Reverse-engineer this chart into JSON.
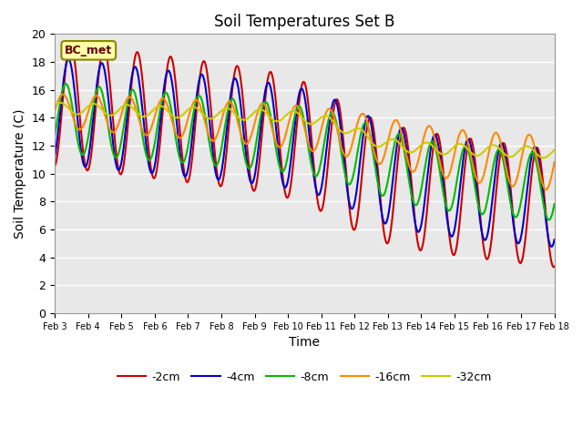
{
  "title": "Soil Temperatures Set B",
  "xlabel": "Time",
  "ylabel": "Soil Temperature (C)",
  "ylim": [
    0,
    20
  ],
  "annotation_text": "BC_met",
  "background_color": "#e8e8e8",
  "series_colors": {
    "-2cm": "#cc0000",
    "-4cm": "#0000cc",
    "-8cm": "#00bb00",
    "-16cm": "#ff8800",
    "-32cm": "#cccc00"
  },
  "series_linewidth": 1.5,
  "tick_dates": [
    "Feb 3",
    "Feb 4",
    "Feb 5",
    "Feb 6",
    "Feb 7",
    "Feb 8",
    "Feb 9",
    "Feb 10",
    "Feb 11",
    "Feb 12",
    "Feb 13",
    "Feb 14",
    "Feb 15",
    "Feb 16",
    "Feb 17",
    "Feb 18"
  ]
}
